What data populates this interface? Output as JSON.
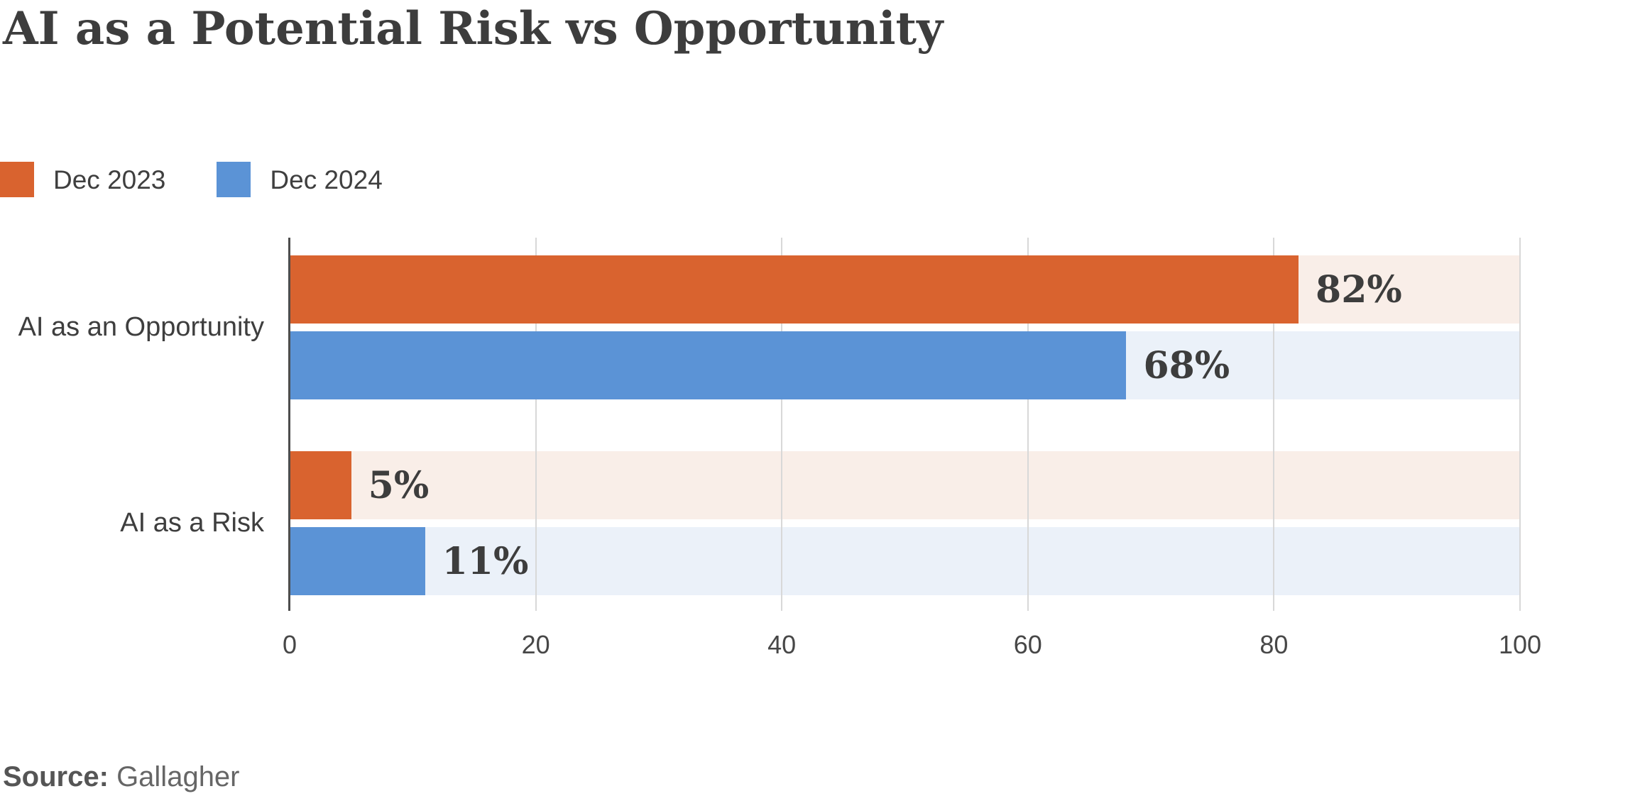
{
  "title": "AI as a Potential Risk vs Opportunity",
  "source": {
    "label": "Source:",
    "value": "Gallagher"
  },
  "colors": {
    "dec2023": "#D9632F",
    "dec2024": "#5B93D6",
    "track_dec2023": "#F9EEE8",
    "track_dec2024": "#EBF1F9",
    "gridline": "#d8d8d8",
    "axis_line": "#4d4d4d",
    "text_dark": "#3d3d3d"
  },
  "chart_data": {
    "type": "bar",
    "orientation": "horizontal",
    "title": "AI as a Potential Risk vs Opportunity",
    "categories": [
      "AI as an Opportunity",
      "AI as a Risk"
    ],
    "series": [
      {
        "name": "Dec 2023",
        "color": "#D9632F",
        "track_color": "#F9EEE8",
        "values": [
          82,
          5
        ],
        "labels": [
          "82%",
          "5%"
        ]
      },
      {
        "name": "Dec 2024",
        "color": "#5B93D6",
        "track_color": "#EBF1F9",
        "values": [
          68,
          11
        ],
        "labels": [
          "68%",
          "11%"
        ]
      }
    ],
    "xlim": [
      0,
      100
    ],
    "x_ticks": [
      "0",
      "20",
      "40",
      "60",
      "80",
      "100"
    ],
    "grid": true,
    "legend_position": "top-left",
    "source": "Source: Gallagher"
  }
}
